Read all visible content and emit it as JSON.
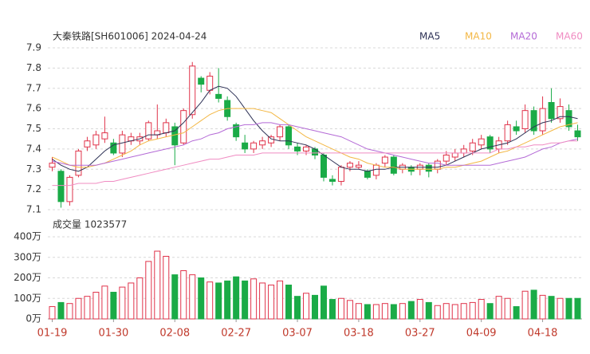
{
  "chart_data": [
    {
      "type": "candlestick",
      "title": "大秦铁路[SH601006] 2024-04-24",
      "categories": [
        "01-19",
        null,
        null,
        null,
        null,
        null,
        null,
        "01-30",
        null,
        null,
        null,
        null,
        null,
        null,
        "02-08",
        null,
        null,
        null,
        null,
        null,
        null,
        "02-27",
        null,
        null,
        null,
        null,
        null,
        null,
        "03-07",
        null,
        null,
        null,
        null,
        null,
        null,
        "03-18",
        null,
        null,
        null,
        null,
        null,
        null,
        "03-27",
        null,
        null,
        null,
        null,
        null,
        null,
        "04-09",
        null,
        null,
        null,
        null,
        null,
        null,
        "04-18",
        null,
        null,
        null,
        null
      ],
      "open": [
        7.31,
        7.29,
        7.14,
        7.27,
        7.41,
        7.42,
        7.45,
        7.43,
        7.38,
        7.44,
        7.44,
        7.45,
        7.47,
        7.48,
        7.51,
        7.43,
        7.57,
        7.75,
        7.69,
        7.67,
        7.64,
        7.52,
        7.43,
        7.4,
        7.42,
        7.43,
        7.46,
        7.51,
        7.41,
        7.39,
        7.4,
        7.37,
        7.25,
        7.24,
        7.31,
        7.31,
        7.29,
        7.27,
        7.33,
        7.36,
        7.3,
        7.31,
        7.3,
        7.32,
        7.3,
        7.34,
        7.36,
        7.38,
        7.39,
        7.42,
        7.46,
        7.4,
        7.44,
        7.51,
        7.5,
        7.59,
        7.49,
        7.63,
        7.55,
        7.59,
        7.49
      ],
      "high": [
        7.36,
        7.3,
        7.27,
        7.4,
        7.46,
        7.49,
        7.56,
        7.45,
        7.49,
        7.48,
        7.48,
        7.54,
        7.62,
        7.55,
        7.53,
        7.6,
        7.83,
        7.76,
        7.78,
        7.8,
        7.66,
        7.53,
        7.47,
        7.44,
        7.46,
        7.47,
        7.52,
        7.52,
        7.43,
        7.42,
        7.41,
        7.38,
        7.27,
        7.32,
        7.34,
        7.34,
        7.3,
        7.33,
        7.37,
        7.37,
        7.33,
        7.32,
        7.33,
        7.33,
        7.35,
        7.39,
        7.4,
        7.42,
        7.45,
        7.47,
        7.47,
        7.46,
        7.54,
        7.54,
        7.62,
        7.61,
        7.66,
        7.7,
        7.65,
        7.62,
        7.52
      ],
      "low": [
        7.29,
        7.11,
        7.12,
        7.26,
        7.39,
        7.4,
        7.43,
        7.37,
        7.36,
        7.42,
        7.42,
        7.44,
        7.45,
        7.46,
        7.32,
        7.42,
        7.55,
        7.68,
        7.67,
        7.63,
        7.54,
        7.44,
        7.38,
        7.38,
        7.4,
        7.41,
        7.44,
        7.4,
        7.37,
        7.37,
        7.35,
        7.24,
        7.22,
        7.22,
        7.29,
        7.3,
        7.25,
        7.25,
        7.31,
        7.27,
        7.28,
        7.27,
        7.27,
        7.26,
        7.28,
        7.32,
        7.34,
        7.36,
        7.37,
        7.4,
        7.38,
        7.38,
        7.42,
        7.47,
        7.48,
        7.47,
        7.47,
        7.53,
        7.53,
        7.49,
        7.44
      ],
      "close": [
        7.33,
        7.14,
        7.26,
        7.39,
        7.44,
        7.47,
        7.48,
        7.38,
        7.47,
        7.46,
        7.46,
        7.53,
        7.49,
        7.53,
        7.42,
        7.59,
        7.81,
        7.72,
        7.76,
        7.65,
        7.56,
        7.46,
        7.4,
        7.43,
        7.44,
        7.46,
        7.51,
        7.42,
        7.39,
        7.41,
        7.37,
        7.26,
        7.24,
        7.31,
        7.33,
        7.32,
        7.26,
        7.32,
        7.36,
        7.28,
        7.32,
        7.29,
        7.32,
        7.29,
        7.34,
        7.37,
        7.38,
        7.4,
        7.43,
        7.45,
        7.4,
        7.44,
        7.52,
        7.49,
        7.59,
        7.49,
        7.6,
        7.55,
        7.61,
        7.51,
        7.46
      ],
      "up_color": "#e0334a",
      "down_color": "#1aab47",
      "ylim": [
        7.1,
        7.9
      ],
      "yticks": [
        7.1,
        7.2,
        7.3,
        7.4,
        7.5,
        7.6,
        7.7,
        7.8,
        7.9
      ],
      "grid": true,
      "series": [
        {
          "name": "MA5",
          "color": "#2e3256",
          "values": [
            7.35,
            7.32,
            7.3,
            7.29,
            7.31,
            7.35,
            7.39,
            7.42,
            7.43,
            7.44,
            7.45,
            7.47,
            7.47,
            7.48,
            7.49,
            7.53,
            7.58,
            7.63,
            7.69,
            7.71,
            7.7,
            7.66,
            7.6,
            7.54,
            7.49,
            7.45,
            7.44,
            7.44,
            7.43,
            7.42,
            7.4,
            7.37,
            7.34,
            7.31,
            7.3,
            7.3,
            7.29,
            7.3,
            7.3,
            7.31,
            7.31,
            7.31,
            7.31,
            7.31,
            7.31,
            7.32,
            7.34,
            7.36,
            7.38,
            7.4,
            7.41,
            7.42,
            7.43,
            7.45,
            7.48,
            7.51,
            7.53,
            7.54,
            7.56,
            7.56,
            7.55
          ]
        },
        {
          "name": "MA10",
          "color": "#f3b744",
          "values": [
            7.36,
            7.34,
            7.32,
            7.31,
            7.31,
            7.32,
            7.33,
            7.35,
            7.37,
            7.39,
            7.42,
            7.44,
            7.45,
            7.46,
            7.47,
            7.48,
            7.51,
            7.54,
            7.57,
            7.59,
            7.6,
            7.6,
            7.6,
            7.6,
            7.59,
            7.58,
            7.55,
            7.52,
            7.49,
            7.46,
            7.44,
            7.42,
            7.4,
            7.38,
            7.36,
            7.35,
            7.33,
            7.32,
            7.31,
            7.31,
            7.3,
            7.3,
            7.3,
            7.3,
            7.3,
            7.31,
            7.31,
            7.32,
            7.33,
            7.34,
            7.36,
            7.38,
            7.39,
            7.41,
            7.43,
            7.45,
            7.47,
            7.49,
            7.51,
            7.52,
            7.53
          ]
        },
        {
          "name": "MA20",
          "color": "#b46ad6",
          "values": [
            7.34,
            7.33,
            7.32,
            7.32,
            7.32,
            7.32,
            7.33,
            7.34,
            7.35,
            7.36,
            7.37,
            7.38,
            7.39,
            7.4,
            7.41,
            7.42,
            7.44,
            7.45,
            7.47,
            7.48,
            7.5,
            7.51,
            7.52,
            7.52,
            7.53,
            7.53,
            7.52,
            7.52,
            7.51,
            7.5,
            7.49,
            7.48,
            7.47,
            7.46,
            7.44,
            7.42,
            7.4,
            7.39,
            7.38,
            7.37,
            7.36,
            7.35,
            7.34,
            7.33,
            7.33,
            7.32,
            7.32,
            7.32,
            7.32,
            7.32,
            7.32,
            7.33,
            7.34,
            7.35,
            7.36,
            7.38,
            7.4,
            7.41,
            7.43,
            7.44,
            7.45
          ]
        },
        {
          "name": "MA60",
          "color": "#f08cc2",
          "values": [
            7.22,
            7.22,
            7.22,
            7.23,
            7.23,
            7.23,
            7.24,
            7.24,
            7.25,
            7.26,
            7.27,
            7.28,
            7.29,
            7.3,
            7.31,
            7.32,
            7.33,
            7.34,
            7.35,
            7.35,
            7.36,
            7.37,
            7.37,
            7.37,
            7.38,
            7.38,
            7.38,
            7.38,
            7.38,
            7.38,
            7.38,
            7.38,
            7.38,
            7.38,
            7.38,
            7.38,
            7.38,
            7.38,
            7.38,
            7.38,
            7.38,
            7.38,
            7.38,
            7.38,
            7.38,
            7.38,
            7.38,
            7.38,
            7.38,
            7.38,
            7.38,
            7.4,
            7.4,
            7.41,
            7.41,
            7.42,
            7.42,
            7.43,
            7.43,
            7.44,
            7.44
          ]
        }
      ]
    },
    {
      "type": "bar",
      "title": "成交量 1023577",
      "values": [
        60,
        80,
        75,
        100,
        110,
        130,
        160,
        130,
        155,
        175,
        200,
        280,
        330,
        305,
        215,
        235,
        215,
        200,
        180,
        175,
        185,
        205,
        185,
        195,
        175,
        165,
        185,
        165,
        110,
        125,
        115,
        160,
        95,
        100,
        90,
        75,
        70,
        70,
        75,
        70,
        75,
        85,
        95,
        80,
        65,
        75,
        70,
        75,
        80,
        95,
        75,
        110,
        100,
        60,
        135,
        140,
        115,
        110,
        100,
        100,
        100
      ],
      "ylim": [
        0,
        400
      ],
      "yticks": [
        {
          "value": 0,
          "label": "0万"
        },
        {
          "value": 100,
          "label": "100万"
        },
        {
          "value": 200,
          "label": "200万"
        },
        {
          "value": 300,
          "label": "300万"
        },
        {
          "value": 400,
          "label": "400万"
        }
      ],
      "grid": true
    }
  ]
}
